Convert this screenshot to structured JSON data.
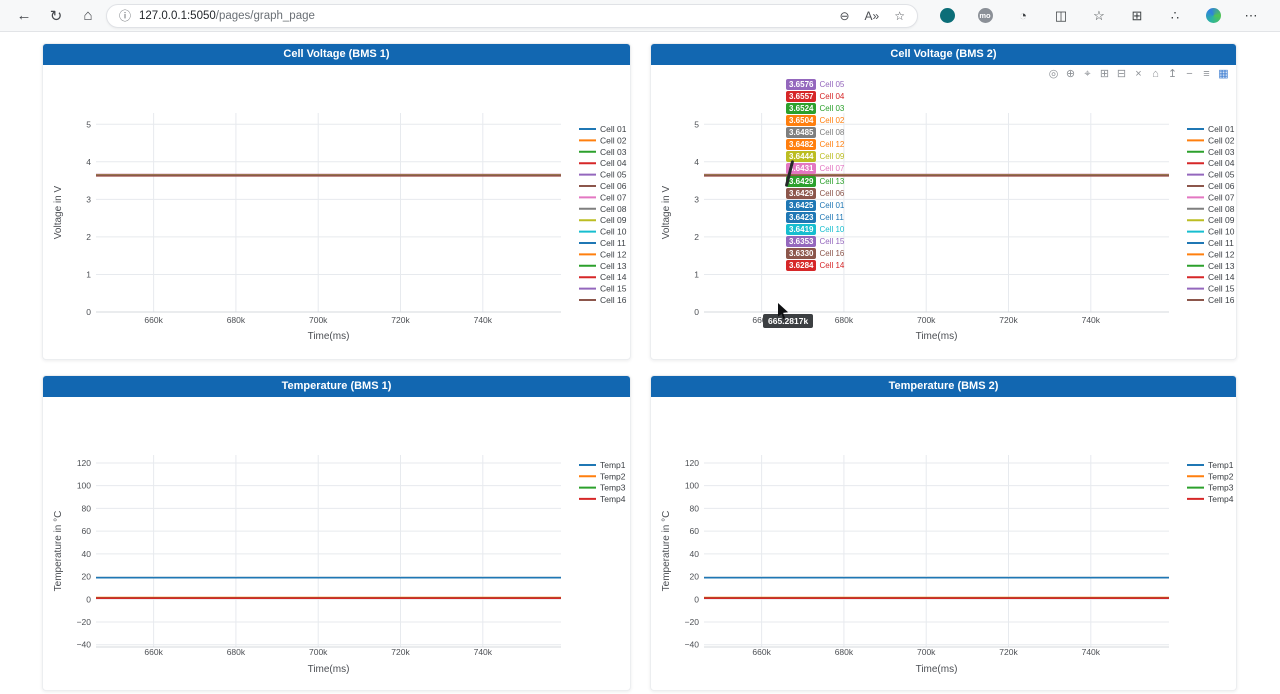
{
  "browser": {
    "nav": [
      {
        "name": "back",
        "glyph": "←"
      },
      {
        "name": "refresh",
        "glyph": "↻"
      },
      {
        "name": "home",
        "glyph": "⌂"
      }
    ],
    "info_icon": "ⓘ",
    "host": "127.0.0.1:5050",
    "path": "/pages/graph_page",
    "zoom_icon": "⊖",
    "read_aloud": "A»",
    "star_icon": "☆",
    "right_icons": [
      {
        "name": "extension-teal-icon",
        "type": "teal"
      },
      {
        "name": "extension-mo-icon",
        "type": "mo",
        "label": "mo"
      },
      {
        "name": "extension-icon",
        "type": "glyph",
        "glyph": "◔"
      },
      {
        "name": "split-screen-icon",
        "type": "glyph",
        "glyph": "◫"
      },
      {
        "name": "favorites-icon",
        "type": "glyph",
        "glyph": "☆"
      },
      {
        "name": "collections-icon",
        "type": "glyph",
        "glyph": "⊞"
      },
      {
        "name": "browser-essentials-icon",
        "type": "glyph",
        "glyph": "∴"
      },
      {
        "name": "copilot-icon",
        "type": "copilot"
      },
      {
        "name": "more-menu-icon",
        "type": "glyph",
        "glyph": "⋯"
      }
    ]
  },
  "theme": {
    "header_blue": "#1267b1"
  },
  "panels": [
    {
      "title": "Cell Voltage (BMS 1)"
    },
    {
      "title": "Cell Voltage (BMS 2)"
    },
    {
      "title": "Temperature (BMS 1)"
    },
    {
      "title": "Temperature (BMS 2)"
    }
  ],
  "modebar": {
    "icons": [
      {
        "name": "download-plot-icon",
        "glyph": "◎"
      },
      {
        "name": "zoom-icon",
        "glyph": "⊕"
      },
      {
        "name": "pan-icon",
        "glyph": "⌖"
      },
      {
        "name": "zoom-in-icon",
        "glyph": "⊞"
      },
      {
        "name": "zoom-out-icon",
        "glyph": "⊟"
      },
      {
        "name": "autoscale-icon",
        "glyph": "×"
      },
      {
        "name": "reset-axes-icon",
        "glyph": "⌂"
      },
      {
        "name": "spikelines-icon",
        "glyph": "↥"
      },
      {
        "name": "hover-closest-icon",
        "glyph": "−"
      },
      {
        "name": "hover-compare-icon",
        "glyph": "≡"
      },
      {
        "name": "hover-x-icon",
        "glyph": "▦",
        "active": true
      }
    ]
  },
  "hover": {
    "x_value": "665.2817k",
    "items": [
      {
        "value": "3.6576",
        "label": "Cell 05",
        "color": "#9467bd"
      },
      {
        "value": "3.6557",
        "label": "Cell 04",
        "color": "#d62728"
      },
      {
        "value": "3.6524",
        "label": "Cell 03",
        "color": "#2ca02c"
      },
      {
        "value": "3.6504",
        "label": "Cell 02",
        "color": "#ff7f0e"
      },
      {
        "value": "3.6485",
        "label": "Cell 08",
        "color": "#7f7f7f"
      },
      {
        "value": "3.6482",
        "label": "Cell 12",
        "color": "#ff7f0e"
      },
      {
        "value": "3.6444",
        "label": "Cell 09",
        "color": "#bcbd22"
      },
      {
        "value": "3.6431",
        "label": "Cell 07",
        "color": "#e377c2"
      },
      {
        "value": "3.6429",
        "label": "Cell 13",
        "color": "#2ca02c"
      },
      {
        "value": "3.6429",
        "label": "Cell 06",
        "color": "#8c564b"
      },
      {
        "value": "3.6425",
        "label": "Cell 01",
        "color": "#1f77b4"
      },
      {
        "value": "3.6423",
        "label": "Cell 11",
        "color": "#1f77b4"
      },
      {
        "value": "3.6419",
        "label": "Cell 10",
        "color": "#17becf"
      },
      {
        "value": "3.6353",
        "label": "Cell 15",
        "color": "#9467bd"
      },
      {
        "value": "3.6330",
        "label": "Cell 16",
        "color": "#8c564b"
      },
      {
        "value": "3.6284",
        "label": "Cell 14",
        "color": "#d62728"
      }
    ]
  },
  "chart_data": [
    {
      "id": "cell-voltage-bms1",
      "type": "line",
      "title": "Cell Voltage (BMS 1)",
      "xlabel": "Time(ms)",
      "ylabel": "Voltage in V",
      "xlim": [
        646000,
        759000
      ],
      "ylim": [
        0,
        5.3
      ],
      "grid": true,
      "legend_position": "right",
      "xticks": [
        {
          "v": 660000,
          "label": "660k"
        },
        {
          "v": 680000,
          "label": "680k"
        },
        {
          "v": 700000,
          "label": "700k"
        },
        {
          "v": 720000,
          "label": "720k"
        },
        {
          "v": 740000,
          "label": "740k"
        }
      ],
      "yticks": [
        {
          "v": 0,
          "label": "0"
        },
        {
          "v": 1,
          "label": "1"
        },
        {
          "v": 2,
          "label": "2"
        },
        {
          "v": 3,
          "label": "3"
        },
        {
          "v": 4,
          "label": "4"
        },
        {
          "v": 5,
          "label": "5"
        }
      ],
      "series": [
        {
          "name": "Cell 01",
          "color": "#1f77b4",
          "value": 3.6425
        },
        {
          "name": "Cell 02",
          "color": "#ff7f0e",
          "value": 3.6504
        },
        {
          "name": "Cell 03",
          "color": "#2ca02c",
          "value": 3.6524
        },
        {
          "name": "Cell 04",
          "color": "#d62728",
          "value": 3.6557
        },
        {
          "name": "Cell 05",
          "color": "#9467bd",
          "value": 3.6576
        },
        {
          "name": "Cell 06",
          "color": "#8c564b",
          "value": 3.6429
        },
        {
          "name": "Cell 07",
          "color": "#e377c2",
          "value": 3.6431
        },
        {
          "name": "Cell 08",
          "color": "#7f7f7f",
          "value": 3.6485
        },
        {
          "name": "Cell 09",
          "color": "#bcbd22",
          "value": 3.6444
        },
        {
          "name": "Cell 10",
          "color": "#17becf",
          "value": 3.6419
        },
        {
          "name": "Cell 11",
          "color": "#1f77b4",
          "value": 3.6423
        },
        {
          "name": "Cell 12",
          "color": "#ff7f0e",
          "value": 3.6482
        },
        {
          "name": "Cell 13",
          "color": "#2ca02c",
          "value": 3.6429
        },
        {
          "name": "Cell 14",
          "color": "#d62728",
          "value": 3.6284
        },
        {
          "name": "Cell 15",
          "color": "#9467bd",
          "value": 3.6353
        },
        {
          "name": "Cell 16",
          "color": "#8c564b",
          "value": 3.633
        }
      ]
    },
    {
      "id": "cell-voltage-bms2",
      "type": "line",
      "title": "Cell Voltage (BMS 2)",
      "xlabel": "Time(ms)",
      "ylabel": "Voltage in V",
      "xlim": [
        646000,
        759000
      ],
      "ylim": [
        0,
        5.3
      ],
      "grid": true,
      "legend_position": "right",
      "xticks": [
        {
          "v": 660000,
          "label": "660k"
        },
        {
          "v": 680000,
          "label": "680k"
        },
        {
          "v": 700000,
          "label": "700k"
        },
        {
          "v": 720000,
          "label": "720k"
        },
        {
          "v": 740000,
          "label": "740k"
        }
      ],
      "yticks": [
        {
          "v": 0,
          "label": "0"
        },
        {
          "v": 1,
          "label": "1"
        },
        {
          "v": 2,
          "label": "2"
        },
        {
          "v": 3,
          "label": "3"
        },
        {
          "v": 4,
          "label": "4"
        },
        {
          "v": 5,
          "label": "5"
        }
      ],
      "series": [
        {
          "name": "Cell 01",
          "color": "#1f77b4",
          "value": 3.6425
        },
        {
          "name": "Cell 02",
          "color": "#ff7f0e",
          "value": 3.6504
        },
        {
          "name": "Cell 03",
          "color": "#2ca02c",
          "value": 3.6524
        },
        {
          "name": "Cell 04",
          "color": "#d62728",
          "value": 3.6557
        },
        {
          "name": "Cell 05",
          "color": "#9467bd",
          "value": 3.6576
        },
        {
          "name": "Cell 06",
          "color": "#8c564b",
          "value": 3.6429
        },
        {
          "name": "Cell 07",
          "color": "#e377c2",
          "value": 3.6431
        },
        {
          "name": "Cell 08",
          "color": "#7f7f7f",
          "value": 3.6485
        },
        {
          "name": "Cell 09",
          "color": "#bcbd22",
          "value": 3.6444
        },
        {
          "name": "Cell 10",
          "color": "#17becf",
          "value": 3.6419
        },
        {
          "name": "Cell 11",
          "color": "#1f77b4",
          "value": 3.6423
        },
        {
          "name": "Cell 12",
          "color": "#ff7f0e",
          "value": 3.6482
        },
        {
          "name": "Cell 13",
          "color": "#2ca02c",
          "value": 3.6429
        },
        {
          "name": "Cell 14",
          "color": "#d62728",
          "value": 3.6284
        },
        {
          "name": "Cell 15",
          "color": "#9467bd",
          "value": 3.6353
        },
        {
          "name": "Cell 16",
          "color": "#8c564b",
          "value": 3.633
        }
      ]
    },
    {
      "id": "temperature-bms1",
      "type": "line",
      "title": "Temperature (BMS 1)",
      "xlabel": "Time(ms)",
      "ylabel": "Temperature in °C",
      "xlim": [
        646000,
        759000
      ],
      "ylim": [
        -42,
        127
      ],
      "grid": true,
      "legend_position": "right",
      "xticks": [
        {
          "v": 660000,
          "label": "660k"
        },
        {
          "v": 680000,
          "label": "680k"
        },
        {
          "v": 700000,
          "label": "700k"
        },
        {
          "v": 720000,
          "label": "720k"
        },
        {
          "v": 740000,
          "label": "740k"
        }
      ],
      "yticks": [
        {
          "v": -40,
          "label": "−40"
        },
        {
          "v": -20,
          "label": "−20"
        },
        {
          "v": 0,
          "label": "0"
        },
        {
          "v": 20,
          "label": "20"
        },
        {
          "v": 40,
          "label": "40"
        },
        {
          "v": 60,
          "label": "60"
        },
        {
          "v": 80,
          "label": "80"
        },
        {
          "v": 100,
          "label": "100"
        },
        {
          "v": 120,
          "label": "120"
        }
      ],
      "series": [
        {
          "name": "Temp1",
          "color": "#1f77b4",
          "value": 19
        },
        {
          "name": "Temp2",
          "color": "#ff7f0e",
          "value": 1.5
        },
        {
          "name": "Temp3",
          "color": "#2ca02c",
          "value": 1.2
        },
        {
          "name": "Temp4",
          "color": "#d62728",
          "value": 1.0
        }
      ]
    },
    {
      "id": "temperature-bms2",
      "type": "line",
      "title": "Temperature (BMS 2)",
      "xlabel": "Time(ms)",
      "ylabel": "Temperature in °C",
      "xlim": [
        646000,
        759000
      ],
      "ylim": [
        -42,
        127
      ],
      "grid": true,
      "legend_position": "right",
      "xticks": [
        {
          "v": 660000,
          "label": "660k"
        },
        {
          "v": 680000,
          "label": "680k"
        },
        {
          "v": 700000,
          "label": "700k"
        },
        {
          "v": 720000,
          "label": "720k"
        },
        {
          "v": 740000,
          "label": "740k"
        }
      ],
      "yticks": [
        {
          "v": -40,
          "label": "−40"
        },
        {
          "v": -20,
          "label": "−20"
        },
        {
          "v": 0,
          "label": "0"
        },
        {
          "v": 20,
          "label": "20"
        },
        {
          "v": 40,
          "label": "40"
        },
        {
          "v": 60,
          "label": "60"
        },
        {
          "v": 80,
          "label": "80"
        },
        {
          "v": 100,
          "label": "100"
        },
        {
          "v": 120,
          "label": "120"
        }
      ],
      "series": [
        {
          "name": "Temp1",
          "color": "#1f77b4",
          "value": 19
        },
        {
          "name": "Temp2",
          "color": "#ff7f0e",
          "value": 1.5
        },
        {
          "name": "Temp3",
          "color": "#2ca02c",
          "value": 1.2
        },
        {
          "name": "Temp4",
          "color": "#d62728",
          "value": 1.0
        }
      ]
    }
  ]
}
